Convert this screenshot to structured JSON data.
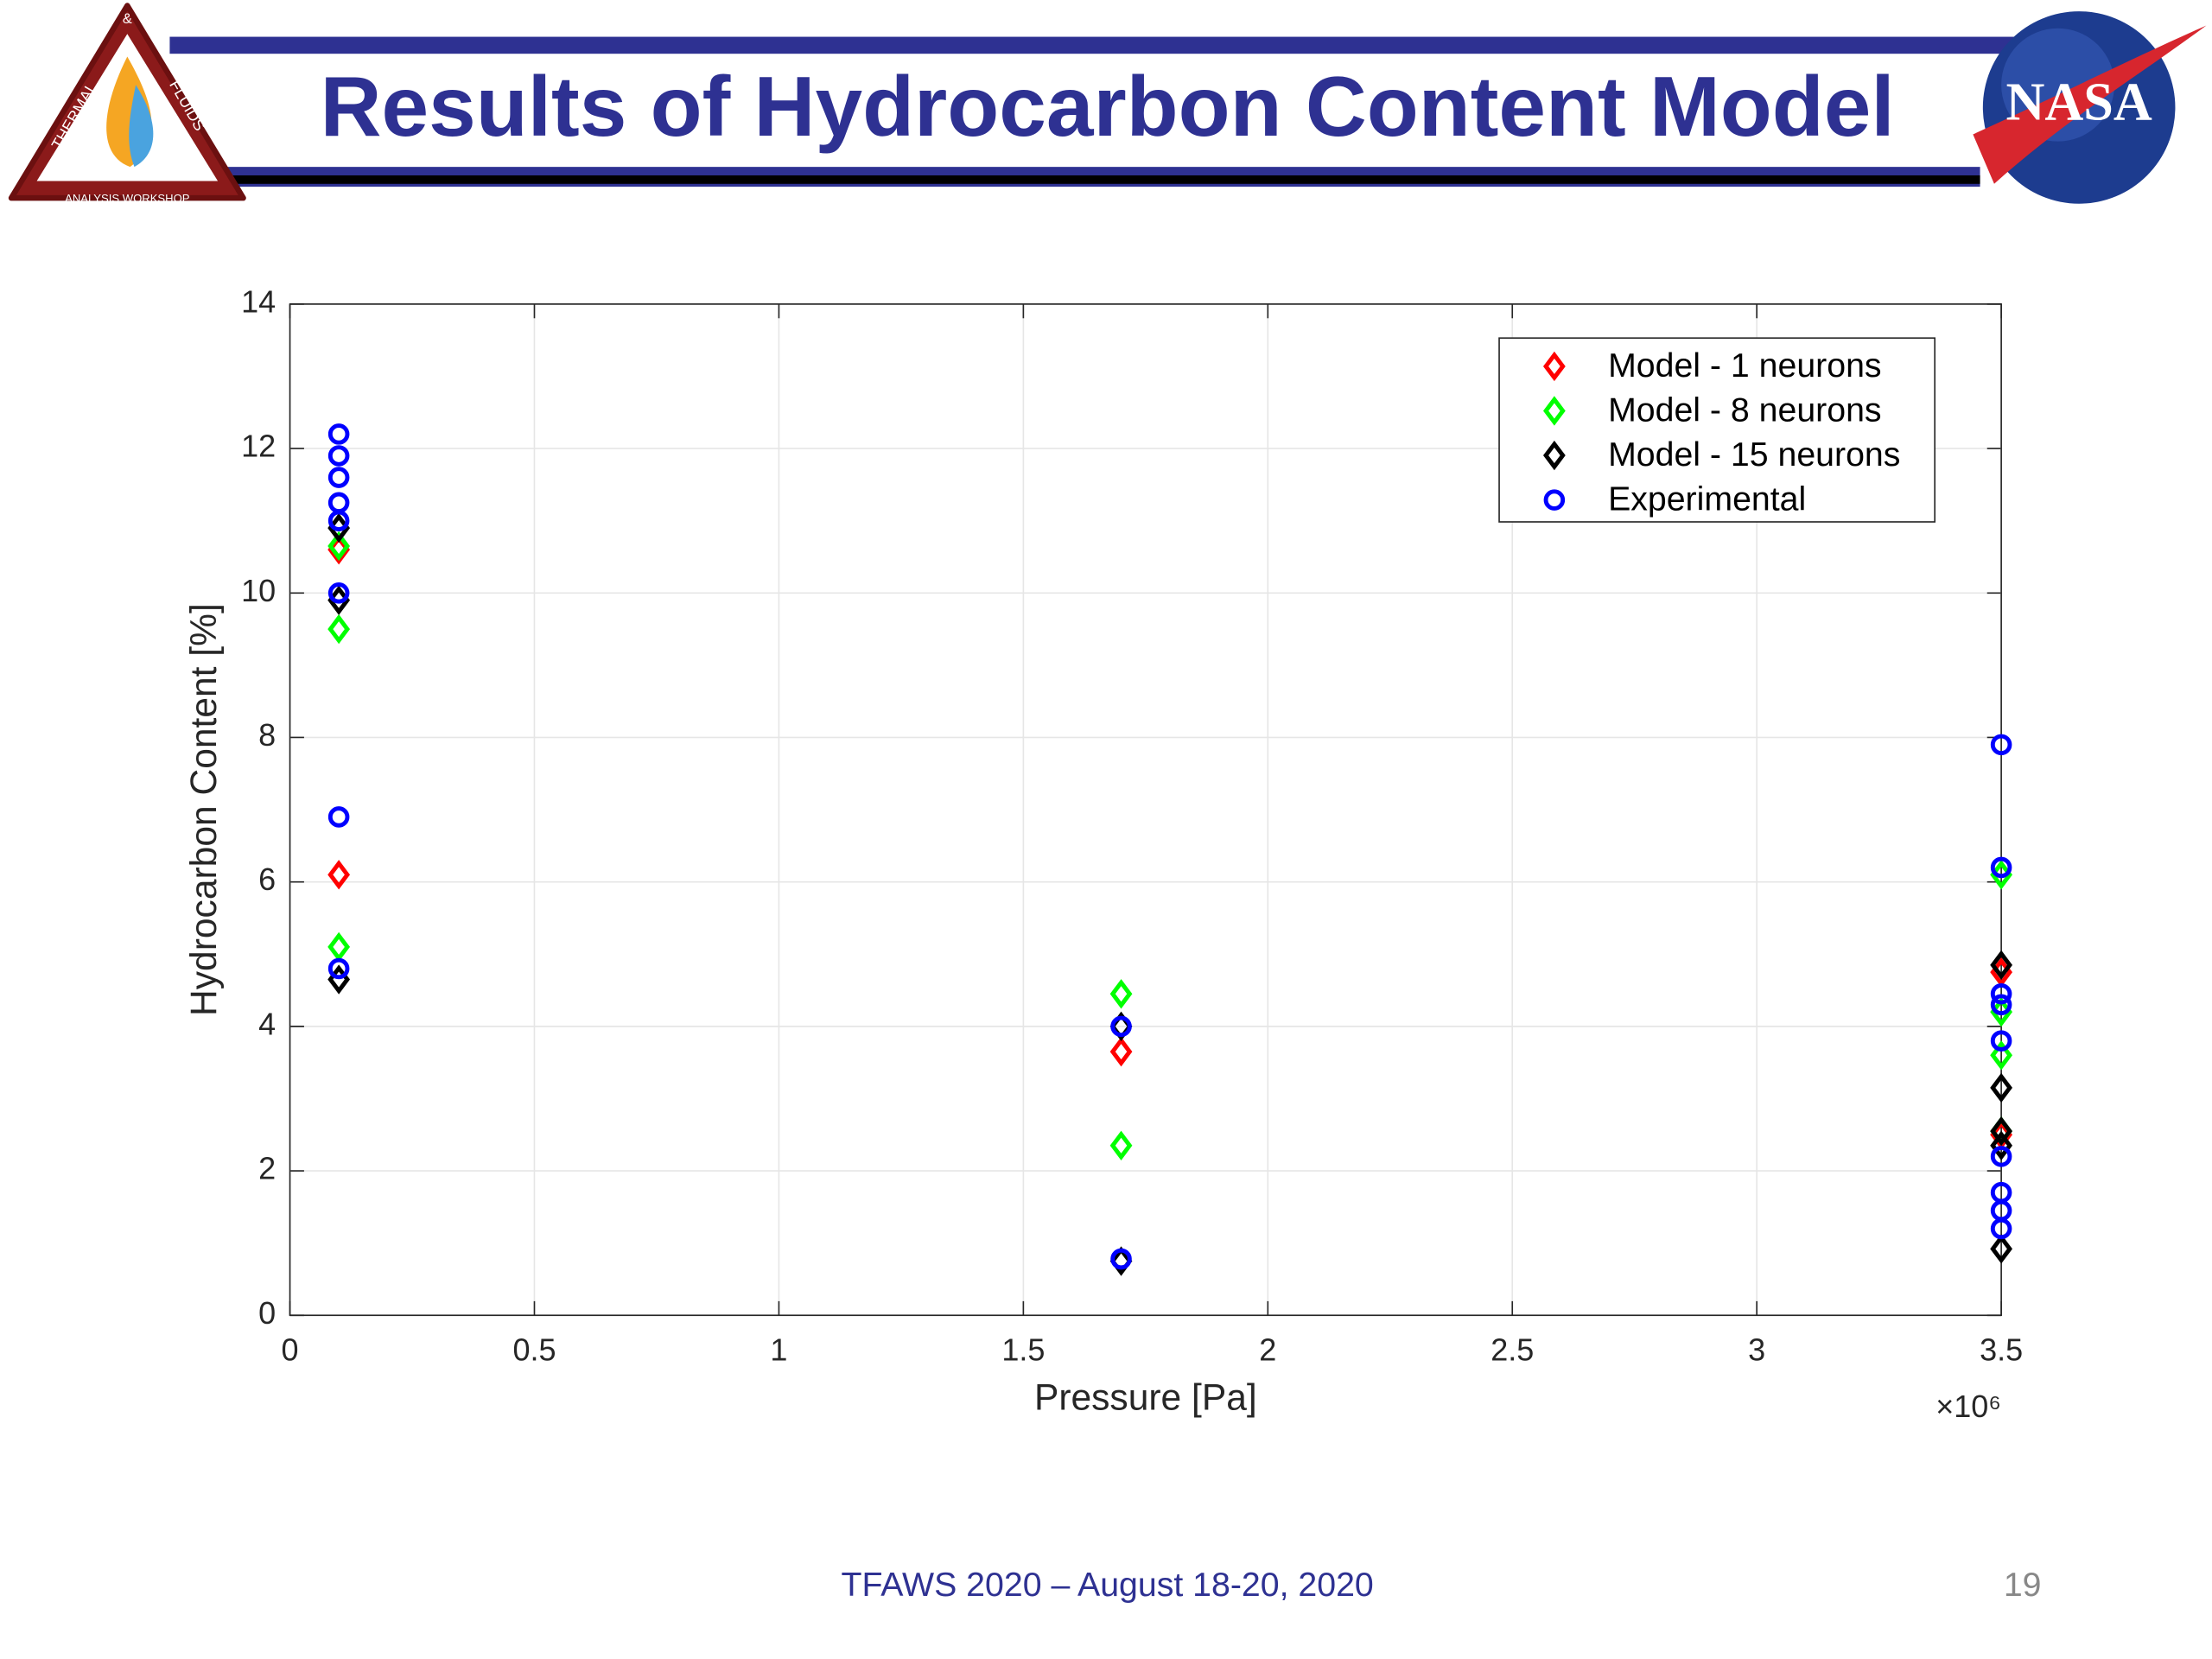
{
  "slide": {
    "title": "Results of Hydrocarbon Content Model",
    "left_logo": {
      "top": "&",
      "left": "THERMAL",
      "right": "FLUIDS",
      "bottom": "ANALYSIS WORKSHOP"
    },
    "right_logo": "NASA",
    "footer": "TFAWS 2020 – August 18-20, 2020",
    "page_number": "19"
  },
  "chart_data": {
    "type": "scatter",
    "x_label": "Pressure [Pa]",
    "y_label": "Hydrocarbon Content [%]",
    "x_exponent_label": "×10⁶",
    "xlim": [
      0,
      3500000
    ],
    "ylim": [
      0,
      14
    ],
    "xticks": [
      0,
      {
        "value": 500000,
        "label": "0.5"
      },
      {
        "value": 1000000,
        "label": "1"
      },
      {
        "value": 1500000,
        "label": "1.5"
      },
      {
        "value": 2000000,
        "label": "2"
      },
      {
        "value": 2500000,
        "label": "2.5"
      },
      {
        "value": 3000000,
        "label": "3"
      },
      {
        "value": 3500000,
        "label": "3.5"
      }
    ],
    "yticks": [
      0,
      2,
      4,
      6,
      8,
      10,
      12,
      14
    ],
    "grid": true,
    "legend": "northeast",
    "series": [
      {
        "name": "Model - 1 neurons",
        "color": "#ff0000",
        "marker": "diamond",
        "x": [
          100000,
          100000,
          1700000,
          3500000,
          3500000
        ],
        "values": [
          10.6,
          6.1,
          3.65,
          4.75,
          2.5
        ]
      },
      {
        "name": "Model - 8 neurons",
        "color": "#00ff00",
        "marker": "diamond",
        "x": [
          100000,
          100000,
          100000,
          1700000,
          1700000,
          3500000,
          3500000,
          3500000,
          3500000
        ],
        "values": [
          10.65,
          9.5,
          5.1,
          4.45,
          2.35,
          6.1,
          4.2,
          3.6,
          2.55
        ]
      },
      {
        "name": "Model - 15 neurons",
        "color": "#000000",
        "marker": "diamond",
        "x": [
          100000,
          100000,
          100000,
          1700000,
          1700000,
          3500000,
          3500000,
          3500000,
          3500000,
          3500000
        ],
        "values": [
          10.9,
          9.9,
          4.65,
          4.0,
          0.75,
          4.85,
          3.15,
          2.55,
          2.35,
          0.92
        ]
      },
      {
        "name": "Experimental",
        "color": "#0000ff",
        "marker": "circle",
        "x": [
          100000,
          100000,
          100000,
          100000,
          100000,
          100000,
          100000,
          100000,
          1700000,
          1700000,
          3500000,
          3500000,
          3500000,
          3500000,
          3500000,
          3500000,
          3500000,
          3500000,
          3500000
        ],
        "values": [
          12.2,
          11.9,
          11.6,
          11.25,
          11.0,
          10.0,
          6.9,
          4.8,
          4.0,
          0.78,
          7.9,
          6.2,
          4.45,
          4.3,
          3.8,
          2.2,
          1.7,
          1.45,
          1.2
        ]
      }
    ]
  }
}
